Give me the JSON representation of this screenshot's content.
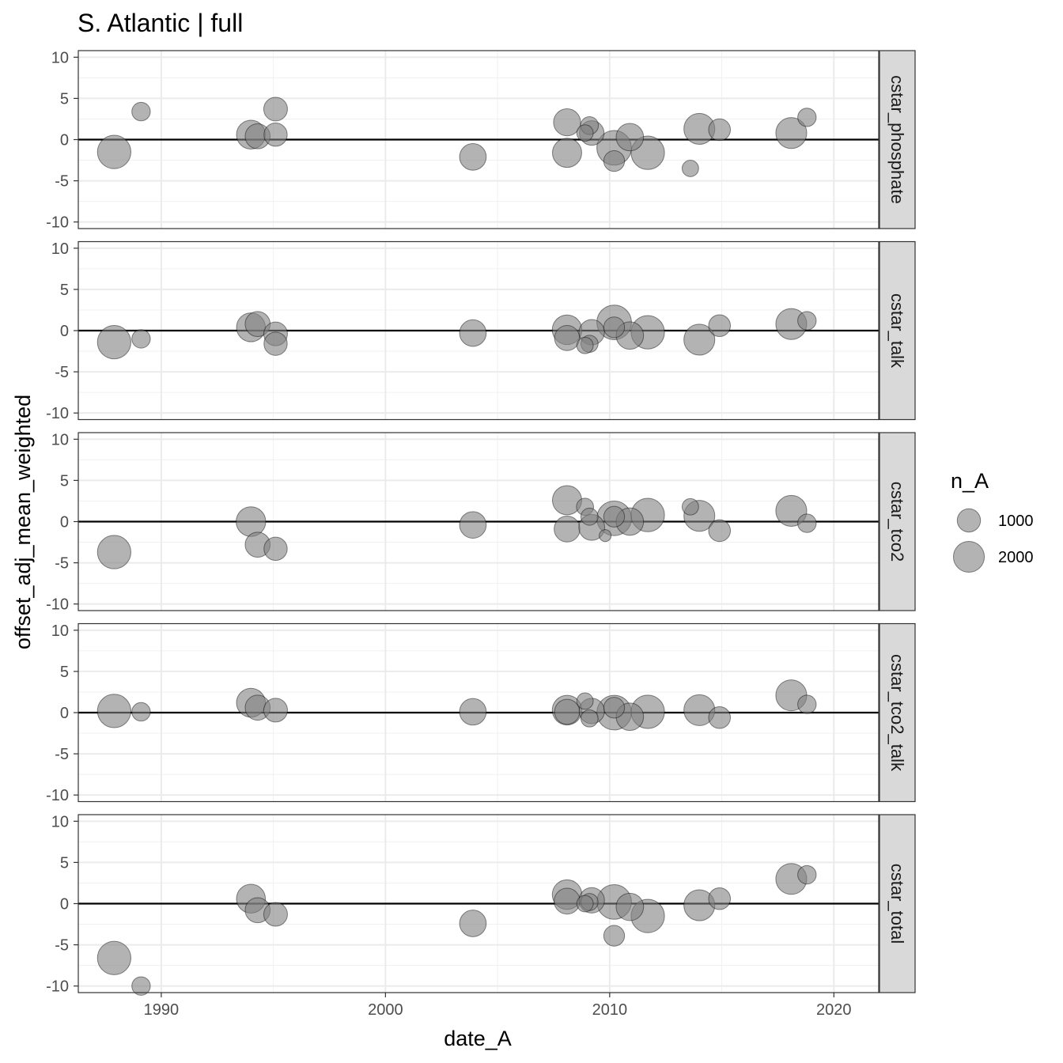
{
  "chart_data": {
    "type": "scatter",
    "title": "S. Atlantic | full",
    "xlabel": "date_A",
    "ylabel": "offset_adj_mean_weighted",
    "xlim": [
      1986.3,
      2022.0
    ],
    "ylim": [
      -10.8,
      10.8
    ],
    "x_ticks": [
      1990,
      2000,
      2010,
      2020
    ],
    "x_tick_labels": [
      "1990",
      "2000",
      "2010",
      "2020"
    ],
    "y_ticks": [
      -10,
      -5,
      0,
      5,
      10
    ],
    "y_tick_labels": [
      "-10",
      "-5",
      "0",
      "5",
      "10"
    ],
    "reference_line_y": 0,
    "point_color": "#808080",
    "point_alpha": 0.6,
    "point_outline_color": "#000000",
    "grid": true,
    "legend": {
      "title": "n_A",
      "position": "right",
      "entries": [
        {
          "label": "1000",
          "value": 1000
        },
        {
          "label": "2000",
          "value": 2000
        }
      ]
    },
    "facets": [
      {
        "label": "cstar_phosphate",
        "points": [
          {
            "x": 1987.9,
            "y": -1.5,
            "n_A": 2400
          },
          {
            "x": 1989.1,
            "y": 3.4,
            "n_A": 550
          },
          {
            "x": 1994.0,
            "y": 0.6,
            "n_A": 1700
          },
          {
            "x": 1994.3,
            "y": 0.4,
            "n_A": 1200
          },
          {
            "x": 1995.1,
            "y": 3.7,
            "n_A": 1050
          },
          {
            "x": 1995.1,
            "y": 0.6,
            "n_A": 1000
          },
          {
            "x": 2003.9,
            "y": -2.1,
            "n_A": 1400
          },
          {
            "x": 2008.1,
            "y": 2.1,
            "n_A": 1450
          },
          {
            "x": 2008.1,
            "y": -1.6,
            "n_A": 1750
          },
          {
            "x": 2008.9,
            "y": 0.8,
            "n_A": 400
          },
          {
            "x": 2009.1,
            "y": 1.7,
            "n_A": 500
          },
          {
            "x": 2009.2,
            "y": 0.8,
            "n_A": 1150
          },
          {
            "x": 2010.2,
            "y": -1.0,
            "n_A": 2600
          },
          {
            "x": 2010.2,
            "y": -2.6,
            "n_A": 750
          },
          {
            "x": 2010.9,
            "y": 0.3,
            "n_A": 1500
          },
          {
            "x": 2011.7,
            "y": -1.6,
            "n_A": 2400
          },
          {
            "x": 2013.6,
            "y": -3.5,
            "n_A": 400
          },
          {
            "x": 2014.0,
            "y": 1.3,
            "n_A": 2000
          },
          {
            "x": 2014.9,
            "y": 1.2,
            "n_A": 850
          },
          {
            "x": 2018.1,
            "y": 0.8,
            "n_A": 2000
          },
          {
            "x": 2018.8,
            "y": 2.7,
            "n_A": 550
          }
        ]
      },
      {
        "label": "cstar_talk",
        "points": [
          {
            "x": 1987.9,
            "y": -1.4,
            "n_A": 2400
          },
          {
            "x": 1989.1,
            "y": -1.0,
            "n_A": 550
          },
          {
            "x": 1994.0,
            "y": 0.4,
            "n_A": 1700
          },
          {
            "x": 1994.3,
            "y": 0.8,
            "n_A": 1200
          },
          {
            "x": 1995.1,
            "y": -0.4,
            "n_A": 1050
          },
          {
            "x": 1995.1,
            "y": -1.6,
            "n_A": 1000
          },
          {
            "x": 2003.9,
            "y": -0.3,
            "n_A": 1400
          },
          {
            "x": 2008.1,
            "y": 0.1,
            "n_A": 1800
          },
          {
            "x": 2008.1,
            "y": -0.9,
            "n_A": 1200
          },
          {
            "x": 2008.9,
            "y": -1.8,
            "n_A": 400
          },
          {
            "x": 2009.1,
            "y": -1.6,
            "n_A": 450
          },
          {
            "x": 2009.2,
            "y": -0.2,
            "n_A": 1250
          },
          {
            "x": 2010.2,
            "y": 1.0,
            "n_A": 2600
          },
          {
            "x": 2010.2,
            "y": 0.4,
            "n_A": 750
          },
          {
            "x": 2010.9,
            "y": -0.6,
            "n_A": 1500
          },
          {
            "x": 2011.7,
            "y": -0.2,
            "n_A": 2400
          },
          {
            "x": 2014.0,
            "y": -1.1,
            "n_A": 2000
          },
          {
            "x": 2014.9,
            "y": 0.6,
            "n_A": 850
          },
          {
            "x": 2018.1,
            "y": 0.8,
            "n_A": 2000
          },
          {
            "x": 2018.8,
            "y": 1.2,
            "n_A": 550
          }
        ]
      },
      {
        "label": "cstar_tco2",
        "points": [
          {
            "x": 1987.9,
            "y": -3.7,
            "n_A": 2400
          },
          {
            "x": 1994.0,
            "y": 0.0,
            "n_A": 1800
          },
          {
            "x": 1994.3,
            "y": -2.8,
            "n_A": 1200
          },
          {
            "x": 1995.1,
            "y": -3.3,
            "n_A": 1000
          },
          {
            "x": 2003.9,
            "y": -0.4,
            "n_A": 1400
          },
          {
            "x": 2008.1,
            "y": 2.6,
            "n_A": 1750
          },
          {
            "x": 2008.1,
            "y": -0.9,
            "n_A": 1300
          },
          {
            "x": 2008.9,
            "y": 1.8,
            "n_A": 450
          },
          {
            "x": 2009.1,
            "y": 0.6,
            "n_A": 450
          },
          {
            "x": 2009.2,
            "y": -0.7,
            "n_A": 1300
          },
          {
            "x": 2009.8,
            "y": -1.7,
            "n_A": 150
          },
          {
            "x": 2010.2,
            "y": 0.4,
            "n_A": 2600
          },
          {
            "x": 2010.2,
            "y": 0.6,
            "n_A": 750
          },
          {
            "x": 2010.9,
            "y": 0.0,
            "n_A": 1500
          },
          {
            "x": 2011.7,
            "y": 0.8,
            "n_A": 2400
          },
          {
            "x": 2013.6,
            "y": 1.8,
            "n_A": 400
          },
          {
            "x": 2014.0,
            "y": 0.7,
            "n_A": 2000
          },
          {
            "x": 2014.9,
            "y": -1.1,
            "n_A": 850
          },
          {
            "x": 2018.1,
            "y": 1.3,
            "n_A": 2000
          },
          {
            "x": 2018.8,
            "y": -0.2,
            "n_A": 550
          }
        ]
      },
      {
        "label": "cstar_tco2_talk",
        "points": [
          {
            "x": 1987.9,
            "y": 0.2,
            "n_A": 2400
          },
          {
            "x": 1989.1,
            "y": 0.1,
            "n_A": 550
          },
          {
            "x": 1994.0,
            "y": 1.2,
            "n_A": 1700
          },
          {
            "x": 1994.3,
            "y": 0.6,
            "n_A": 1200
          },
          {
            "x": 1995.1,
            "y": 0.3,
            "n_A": 1050
          },
          {
            "x": 2003.9,
            "y": 0.1,
            "n_A": 1400
          },
          {
            "x": 2008.1,
            "y": 0.3,
            "n_A": 1800
          },
          {
            "x": 2008.1,
            "y": 0.1,
            "n_A": 1200
          },
          {
            "x": 2008.9,
            "y": 1.4,
            "n_A": 400
          },
          {
            "x": 2009.1,
            "y": -0.7,
            "n_A": 450
          },
          {
            "x": 2009.2,
            "y": 0.2,
            "n_A": 1250
          },
          {
            "x": 2010.2,
            "y": 0.0,
            "n_A": 2600
          },
          {
            "x": 2010.2,
            "y": 0.6,
            "n_A": 750
          },
          {
            "x": 2010.9,
            "y": -0.5,
            "n_A": 1500
          },
          {
            "x": 2011.7,
            "y": 0.1,
            "n_A": 2400
          },
          {
            "x": 2014.0,
            "y": 0.3,
            "n_A": 2000
          },
          {
            "x": 2014.9,
            "y": -0.6,
            "n_A": 850
          },
          {
            "x": 2018.1,
            "y": 2.1,
            "n_A": 2000
          },
          {
            "x": 2018.8,
            "y": 1.0,
            "n_A": 550
          }
        ]
      },
      {
        "label": "cstar_total",
        "points": [
          {
            "x": 1987.9,
            "y": -6.6,
            "n_A": 2400
          },
          {
            "x": 1989.1,
            "y": -10.0,
            "n_A": 550
          },
          {
            "x": 1994.0,
            "y": 0.6,
            "n_A": 1700
          },
          {
            "x": 1994.3,
            "y": -0.8,
            "n_A": 1200
          },
          {
            "x": 1995.1,
            "y": -1.3,
            "n_A": 1050
          },
          {
            "x": 2003.9,
            "y": -2.4,
            "n_A": 1400
          },
          {
            "x": 2008.1,
            "y": 1.1,
            "n_A": 1800
          },
          {
            "x": 2008.1,
            "y": 0.3,
            "n_A": 1300
          },
          {
            "x": 2008.9,
            "y": 0.0,
            "n_A": 400
          },
          {
            "x": 2009.1,
            "y": 0.2,
            "n_A": 450
          },
          {
            "x": 2009.2,
            "y": 0.4,
            "n_A": 1250
          },
          {
            "x": 2010.2,
            "y": 0.2,
            "n_A": 2600
          },
          {
            "x": 2010.2,
            "y": -3.9,
            "n_A": 750
          },
          {
            "x": 2010.9,
            "y": -0.4,
            "n_A": 1500
          },
          {
            "x": 2011.7,
            "y": -1.5,
            "n_A": 2400
          },
          {
            "x": 2014.0,
            "y": -0.2,
            "n_A": 2000
          },
          {
            "x": 2014.9,
            "y": 0.6,
            "n_A": 850
          },
          {
            "x": 2018.1,
            "y": 3.0,
            "n_A": 2000
          },
          {
            "x": 2018.8,
            "y": 3.5,
            "n_A": 550
          }
        ]
      }
    ]
  }
}
